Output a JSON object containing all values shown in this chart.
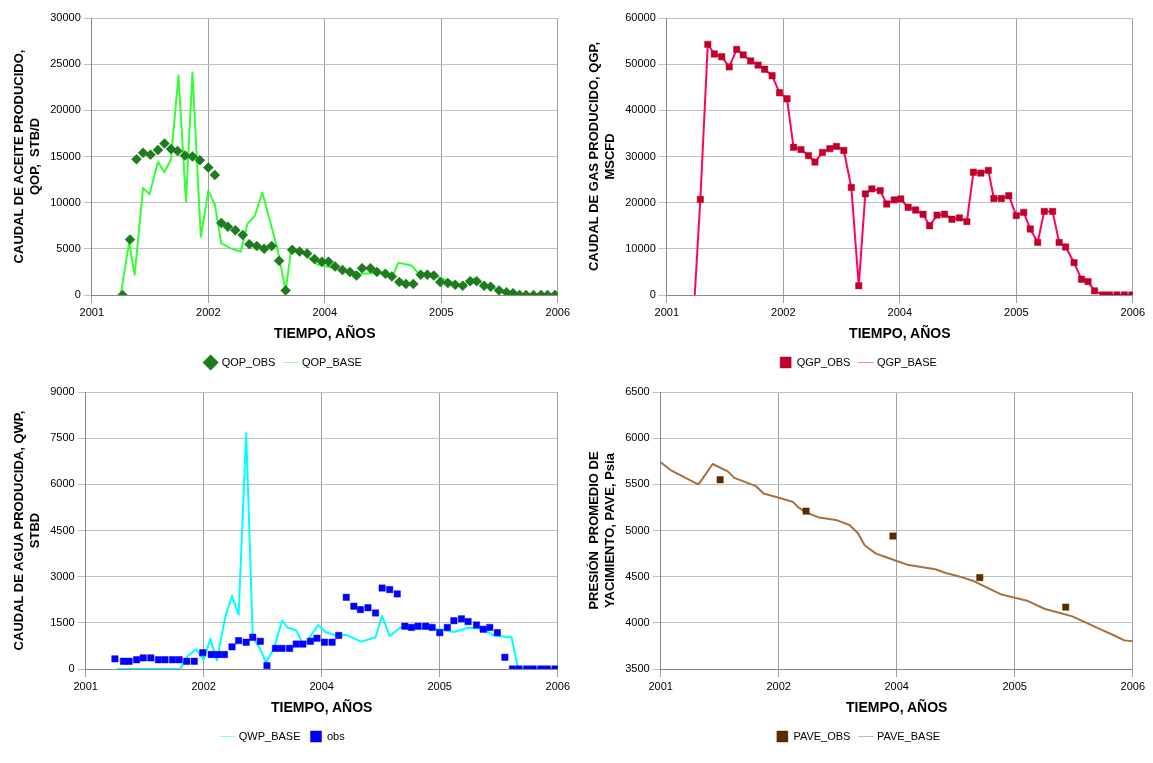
{
  "chart_data": [
    {
      "type": "line",
      "xlabel": "TIEMPO, AÑOS",
      "ylabel": "CAUDAL DE ACEITE PRODUCIDO, QOP,  STB/D",
      "xlim": [
        2001,
        2006
      ],
      "xticks": [
        {
          "value": 2001,
          "label": "2001"
        },
        {
          "value": 2002.25,
          "label": "2002"
        },
        {
          "value": 2003.5,
          "label": "2004"
        },
        {
          "value": 2004.75,
          "label": "2005"
        },
        {
          "value": 2006,
          "label": "2006"
        }
      ],
      "ylim": [
        0,
        30000
      ],
      "yticks": [
        0,
        5000,
        10000,
        15000,
        20000,
        25000,
        30000
      ],
      "grid": true,
      "legend": "bottom",
      "series": [
        {
          "name": "QOP_OBS",
          "type": "scatter",
          "marker": "diamond",
          "color": "#1e7b1e",
          "x": [
            2001.33,
            2001.41,
            2001.48,
            2001.55,
            2001.63,
            2001.71,
            2001.78,
            2001.85,
            2001.92,
            2002.0,
            2002.08,
            2002.16,
            2002.25,
            2002.32,
            2002.39,
            2002.46,
            2002.54,
            2002.62,
            2002.69,
            2002.77,
            2002.85,
            2002.93,
            2003.01,
            2003.08,
            2003.15,
            2003.23,
            2003.31,
            2003.39,
            2003.47,
            2003.54,
            2003.61,
            2003.69,
            2003.77,
            2003.84,
            2003.9,
            2003.99,
            2004.06,
            2004.15,
            2004.22,
            2004.3,
            2004.37,
            2004.45,
            2004.53,
            2004.6,
            2004.67,
            2004.74,
            2004.82,
            2004.9,
            2004.98,
            2005.06,
            2005.13,
            2005.21,
            2005.28,
            2005.37,
            2005.45,
            2005.52,
            2005.59,
            2005.66,
            2005.74,
            2005.82,
            2005.89,
            2005.97
          ],
          "values": [
            0,
            6000,
            14700,
            15400,
            15200,
            15700,
            16400,
            15800,
            15600,
            15100,
            15000,
            14600,
            13800,
            13000,
            7800,
            7400,
            7000,
            6500,
            5500,
            5300,
            5000,
            5300,
            3700,
            500,
            4900,
            4700,
            4500,
            3900,
            3600,
            3600,
            3100,
            2700,
            2500,
            2100,
            2900,
            2900,
            2500,
            2300,
            2000,
            1400,
            1200,
            1200,
            2200,
            2200,
            2100,
            1400,
            1300,
            1100,
            1000,
            1500,
            1500,
            1000,
            900,
            500,
            300,
            200,
            0,
            0,
            0,
            0,
            0,
            0
          ]
        },
        {
          "name": "QOP_BASE",
          "type": "line",
          "marker": "none",
          "color": "#33ff33",
          "x": [
            2001.31,
            2001.4,
            2001.46,
            2001.55,
            2001.62,
            2001.71,
            2001.78,
            2001.85,
            2001.93,
            2002.01,
            2002.08,
            2002.17,
            2002.25,
            2002.32,
            2002.39,
            2002.5,
            2002.6,
            2002.67,
            2002.75,
            2002.83,
            2002.91,
            2002.99,
            2003.08,
            2003.14,
            2003.26,
            2003.42,
            2003.65,
            2003.88,
            2004.16,
            2004.23,
            2004.29,
            2004.43,
            2004.51,
            2004.67,
            2004.98,
            2005.1,
            2005.21,
            2005.45,
            2005.59,
            2005.97
          ],
          "values": [
            0,
            5700,
            2200,
            11600,
            10900,
            14400,
            13300,
            14700,
            23800,
            10100,
            24100,
            6300,
            11300,
            9800,
            5600,
            5000,
            4700,
            7700,
            8600,
            11100,
            8100,
            5100,
            500,
            4900,
            4600,
            3300,
            2800,
            2300,
            2400,
            2100,
            3500,
            3200,
            2300,
            2100,
            1000,
            1800,
            1100,
            300,
            0,
            0
          ]
        }
      ]
    },
    {
      "type": "line",
      "xlabel": "TIEMPO, AÑOS",
      "ylabel": "CAUDAL DE GAS PRODUCIDO, QGP, MSCFD",
      "xlim": [
        2001,
        2006
      ],
      "xticks": [
        {
          "value": 2001,
          "label": "2001"
        },
        {
          "value": 2002.25,
          "label": "2002"
        },
        {
          "value": 2003.5,
          "label": "2004"
        },
        {
          "value": 2004.75,
          "label": "2005"
        },
        {
          "value": 2006,
          "label": "2006"
        }
      ],
      "ylim": [
        0,
        60000
      ],
      "yticks": [
        0,
        10000,
        20000,
        30000,
        40000,
        50000,
        60000
      ],
      "grid": true,
      "legend": "bottom",
      "series": [
        {
          "name": "QGP_OBS",
          "type": "scatter",
          "marker": "square",
          "color": "#c0002a",
          "x": [
            2001.36,
            2001.44,
            2001.51,
            2001.59,
            2001.67,
            2001.75,
            2001.82,
            2001.9,
            2001.98,
            2002.05,
            2002.13,
            2002.21,
            2002.29,
            2002.36,
            2002.44,
            2002.52,
            2002.59,
            2002.67,
            2002.75,
            2002.82,
            2002.9,
            2002.98,
            2003.06,
            2003.13,
            2003.2,
            2003.29,
            2003.36,
            2003.44,
            2003.51,
            2003.59,
            2003.67,
            2003.75,
            2003.82,
            2003.9,
            2003.98,
            2004.06,
            2004.14,
            2004.22,
            2004.29,
            2004.37,
            2004.45,
            2004.51,
            2004.59,
            2004.67,
            2004.75,
            2004.83,
            2004.9,
            2004.98,
            2005.05,
            2005.14,
            2005.21,
            2005.28,
            2005.37,
            2005.45,
            2005.52,
            2005.59,
            2005.68,
            2005.75,
            2005.83,
            2005.91,
            2005.99
          ],
          "values": [
            20700,
            54300,
            52200,
            51600,
            49400,
            53200,
            52000,
            50700,
            49800,
            48900,
            47500,
            43800,
            42500,
            32000,
            31500,
            30200,
            28800,
            30900,
            31700,
            32200,
            31300,
            23300,
            2000,
            21900,
            23000,
            22600,
            19700,
            20600,
            20800,
            19000,
            18400,
            17500,
            15000,
            17300,
            17500,
            16400,
            16700,
            15900,
            26600,
            26400,
            27000,
            20900,
            20900,
            21500,
            17200,
            17900,
            14300,
            11400,
            18100,
            18100,
            11400,
            10400,
            7000,
            3400,
            2900,
            900,
            0,
            0,
            0,
            0,
            0
          ]
        },
        {
          "name": "QGP_BASE",
          "type": "line",
          "marker": "none",
          "color": "#ff0066",
          "x": [
            2001.3,
            2001.36,
            2001.44,
            2001.51,
            2001.59,
            2001.67,
            2001.75,
            2001.82,
            2001.9,
            2001.98,
            2002.05,
            2002.13,
            2002.21,
            2002.29,
            2002.36,
            2002.44,
            2002.52,
            2002.59,
            2002.67,
            2002.75,
            2002.82,
            2002.9,
            2002.98,
            2003.06,
            2003.13,
            2003.2,
            2003.29,
            2003.36,
            2003.44,
            2003.51,
            2003.59,
            2003.67,
            2003.75,
            2003.82,
            2003.9,
            2003.98,
            2004.06,
            2004.14,
            2004.22,
            2004.29,
            2004.37,
            2004.45,
            2004.51,
            2004.59,
            2004.67,
            2004.75,
            2004.83,
            2004.9,
            2004.98,
            2005.05,
            2005.14,
            2005.21,
            2005.28,
            2005.37,
            2005.45,
            2005.52,
            2005.59,
            2005.68,
            2005.75,
            2005.83,
            2005.91,
            2005.99
          ],
          "values": [
            0,
            20700,
            54300,
            52200,
            51600,
            49400,
            53200,
            52000,
            50700,
            49800,
            48900,
            47500,
            43800,
            42500,
            32000,
            31500,
            30200,
            28800,
            30900,
            31700,
            32200,
            31300,
            23300,
            2000,
            21900,
            23000,
            22600,
            19700,
            20600,
            20800,
            19000,
            18400,
            17500,
            15000,
            17300,
            17500,
            16400,
            16700,
            15900,
            26600,
            26400,
            27000,
            20900,
            20900,
            21500,
            17200,
            17900,
            14300,
            11400,
            18100,
            18100,
            11400,
            10400,
            7000,
            3400,
            2900,
            900,
            0,
            0,
            0,
            0,
            0
          ]
        }
      ]
    },
    {
      "type": "line",
      "xlabel": "TIEMPO, AÑOS",
      "ylabel": "CAUDAL DE AGUA PRODUCIDA, QWP, STBD",
      "xlim": [
        2001,
        2006
      ],
      "xticks": [
        {
          "value": 2001,
          "label": "2001"
        },
        {
          "value": 2002.25,
          "label": "2002"
        },
        {
          "value": 2003.5,
          "label": "2004"
        },
        {
          "value": 2004.75,
          "label": "2005"
        },
        {
          "value": 2006,
          "label": "2006"
        }
      ],
      "ylim": [
        0,
        9000
      ],
      "yticks": [
        0,
        1500,
        3000,
        4500,
        6000,
        7500,
        9000
      ],
      "grid": true,
      "legend": "bottom",
      "series": [
        {
          "name": "QWP_BASE",
          "type": "line",
          "marker": "none",
          "color": "#00ffff",
          "x": [
            2001.33,
            2002.0,
            2002.08,
            2002.17,
            2002.25,
            2002.32,
            2002.39,
            2002.48,
            2002.55,
            2002.62,
            2002.7,
            2002.77,
            2002.85,
            2002.91,
            2002.99,
            2003.08,
            2003.14,
            2003.23,
            2003.31,
            2003.39,
            2003.46,
            2003.54,
            2003.65,
            2003.76,
            2003.92,
            2004.07,
            2004.14,
            2004.22,
            2004.33,
            2004.48,
            2004.75,
            2004.9,
            2005.05,
            2005.2,
            2005.32,
            2005.51,
            2005.58,
            2005.98
          ],
          "values": [
            0,
            0,
            420,
            640,
            300,
            980,
            280,
            1710,
            2380,
            1760,
            7660,
            1030,
            640,
            210,
            640,
            1570,
            1340,
            1260,
            750,
            null,
            1430,
            1200,
            1090,
            1110,
            890,
            1030,
            1730,
            1070,
            1340,
            null,
            1290,
            1200,
            1340,
            1310,
            1090,
            1030,
            0,
            0
          ]
        },
        {
          "name": "obs",
          "type": "scatter",
          "marker": "square",
          "color": "#0000ff",
          "x": [
            2001.31,
            2001.4,
            2001.46,
            2001.54,
            2001.61,
            2001.69,
            2001.77,
            2001.84,
            2001.92,
            2001.99,
            2002.07,
            2002.15,
            2002.24,
            2002.33,
            2002.4,
            2002.47,
            2002.55,
            2002.62,
            2002.7,
            2002.77,
            2002.85,
            2002.92,
            2003.01,
            2003.08,
            2003.16,
            2003.23,
            2003.3,
            2003.38,
            2003.45,
            2003.53,
            2003.61,
            2003.68,
            2003.76,
            2003.84,
            2003.91,
            2003.99,
            2004.07,
            2004.14,
            2004.22,
            2004.3,
            2004.38,
            2004.45,
            2004.52,
            2004.6,
            2004.67,
            2004.75,
            2004.83,
            2004.9,
            2004.98,
            2005.05,
            2005.14,
            2005.21,
            2005.28,
            2005.36,
            2005.44,
            2005.52,
            2005.59,
            2005.67,
            2005.74,
            2005.82,
            2005.89,
            2005.97
          ],
          "values": [
            330,
            250,
            250,
            300,
            360,
            360,
            300,
            300,
            300,
            300,
            250,
            250,
            530,
            470,
            470,
            470,
            720,
            920,
            870,
            1030,
            900,
            110,
            670,
            670,
            670,
            810,
            810,
            900,
            1000,
            870,
            870,
            1090,
            2330,
            2040,
            1930,
            1990,
            1820,
            2630,
            2580,
            2440,
            1390,
            1350,
            1390,
            1390,
            1350,
            1180,
            1350,
            1570,
            1630,
            1540,
            1430,
            1290,
            1350,
            1180,
            380,
            0,
            0,
            0,
            0,
            0,
            0,
            0
          ]
        }
      ]
    },
    {
      "type": "line",
      "xlabel": "TIEMPO, AÑOS",
      "ylabel": "PRESIÓN  PROMEDIO DE YACIMIENTO, PAVE, Psia",
      "xlim": [
        2001,
        2006
      ],
      "xticks": [
        {
          "value": 2001,
          "label": "2001"
        },
        {
          "value": 2002.25,
          "label": "2002"
        },
        {
          "value": 2003.5,
          "label": "2004"
        },
        {
          "value": 2004.75,
          "label": "2005"
        },
        {
          "value": 2006,
          "label": "2006"
        }
      ],
      "ylim": [
        3500,
        6500
      ],
      "yticks": [
        3500,
        4000,
        4500,
        5000,
        5500,
        6000,
        6500
      ],
      "grid": true,
      "legend": "bottom",
      "series": [
        {
          "name": "PAVE_OBS",
          "type": "scatter",
          "marker": "square",
          "color": "#5a2d00",
          "x": [
            2001.63,
            2002.54,
            2003.46,
            2004.38,
            2005.29
          ],
          "values": [
            5550,
            5210,
            4940,
            4490,
            4170
          ]
        },
        {
          "name": "PAVE_BASE",
          "type": "line",
          "marker": "none",
          "color": "#a8703c",
          "x": [
            2001.0,
            2001.11,
            2001.34,
            2001.4,
            2001.47,
            2001.55,
            2001.71,
            2001.78,
            2002.01,
            2002.09,
            2002.27,
            2002.4,
            2002.46,
            2002.53,
            2002.68,
            2002.87,
            2003.0,
            2003.09,
            2003.16,
            2003.28,
            2003.39,
            2003.5,
            2003.61,
            2003.91,
            2004.02,
            2004.17,
            2004.32,
            2004.6,
            2004.88,
            2005.07,
            2005.22,
            2005.36,
            2005.66,
            2005.81,
            2005.91,
            2006.0
          ],
          "values": [
            5740,
            5650,
            5530,
            5500,
            5600,
            5720,
            5640,
            5570,
            5480,
            5400,
            5350,
            5310,
            5250,
            5200,
            5140,
            5110,
            5060,
            4970,
            4840,
            4750,
            4710,
            4670,
            4630,
            4580,
            4540,
            4500,
            4450,
            4310,
            4240,
            4150,
            4110,
            4070,
            3930,
            3860,
            3810,
            3800
          ]
        }
      ]
    }
  ]
}
